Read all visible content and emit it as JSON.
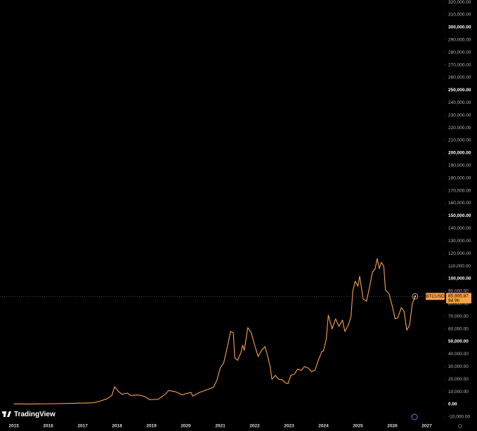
{
  "chart_data": {
    "type": "line",
    "x": [
      2015.0,
      2015.5,
      2016.0,
      2016.5,
      2017.0,
      2017.3,
      2017.5,
      2017.7,
      2017.85,
      2017.93,
      2018.05,
      2018.15,
      2018.3,
      2018.4,
      2018.6,
      2018.8,
      2018.95,
      2019.2,
      2019.4,
      2019.5,
      2019.7,
      2019.9,
      2020.0,
      2020.15,
      2020.2,
      2020.4,
      2020.6,
      2020.8,
      2020.9,
      2021.0,
      2021.1,
      2021.2,
      2021.3,
      2021.38,
      2021.42,
      2021.5,
      2021.6,
      2021.65,
      2021.7,
      2021.8,
      2021.9,
      2022.0,
      2022.1,
      2022.2,
      2022.3,
      2022.38,
      2022.45,
      2022.5,
      2022.6,
      2022.7,
      2022.8,
      2022.9,
      2022.97,
      2023.05,
      2023.15,
      2023.25,
      2023.35,
      2023.45,
      2023.55,
      2023.65,
      2023.75,
      2023.85,
      2023.95,
      2024.0,
      2024.08,
      2024.14,
      2024.25,
      2024.35,
      2024.45,
      2024.55,
      2024.62,
      2024.72,
      2024.8,
      2024.85,
      2024.92,
      2025.0,
      2025.05,
      2025.15,
      2025.25,
      2025.35,
      2025.42,
      2025.5,
      2025.56,
      2025.62,
      2025.68,
      2025.75,
      2025.8,
      2025.9,
      2026.0,
      2026.08,
      2026.16,
      2026.26,
      2026.34,
      2026.42,
      2026.5,
      2026.58,
      2026.66
    ],
    "series": [
      {
        "name": "BTCUSD",
        "color": "#f7a34a",
        "values": [
          300,
          250,
          430,
          650,
          1000,
          1200,
          2500,
          4300,
          7000,
          14000,
          10000,
          8000,
          9000,
          7000,
          7500,
          6300,
          3700,
          4000,
          8000,
          11000,
          10000,
          7500,
          8500,
          9500,
          6500,
          9500,
          11500,
          13500,
          19000,
          29000,
          33000,
          45000,
          58000,
          57000,
          37000,
          35000,
          41000,
          47000,
          43000,
          61000,
          57000,
          47000,
          38000,
          43000,
          46000,
          38000,
          30000,
          20000,
          23000,
          20000,
          19500,
          17000,
          16500,
          23000,
          24000,
          28000,
          27000,
          30000,
          29000,
          26000,
          27000,
          35000,
          42000,
          42500,
          52000,
          71000,
          60000,
          68000,
          62000,
          67000,
          58000,
          63000,
          70000,
          90000,
          98000,
          94000,
          102000,
          84000,
          82000,
          95000,
          105000,
          108000,
          116000,
          108000,
          113000,
          110000,
          91000,
          88000,
          78000,
          68000,
          69000,
          77000,
          74000,
          59000,
          63000,
          80000,
          85905.87
        ]
      }
    ],
    "last_price": {
      "value": 85905.87,
      "label": "85,905.87"
    },
    "countdown": "9d 9h",
    "watermark": "TradingView",
    "xlim": [
      2014.6,
      2027.5
    ],
    "xticks": [
      2015,
      2016,
      2017,
      2018,
      2019,
      2020,
      2021,
      2022,
      2023,
      2024,
      2025,
      2026,
      2027
    ],
    "ylim": [
      -13400,
      321700
    ],
    "yticks": [
      {
        "value": -10000,
        "label": "-10,000.00"
      },
      {
        "value": 0,
        "label": "0.00"
      },
      {
        "value": 10000,
        "label": "10,000.00"
      },
      {
        "value": 20000,
        "label": "20,000.00"
      },
      {
        "value": 30000,
        "label": "30,000.00"
      },
      {
        "value": 40000,
        "label": "40,000.00"
      },
      {
        "value": 50000,
        "label": "50,000.00"
      },
      {
        "value": 60000,
        "label": "60,000.00"
      },
      {
        "value": 70000,
        "label": "70,000.00"
      },
      {
        "value": 80000,
        "label": "80,000.00"
      },
      {
        "value": 90000,
        "label": "90,000.00"
      },
      {
        "value": 100000,
        "label": "100,000.00"
      },
      {
        "value": 110000,
        "label": "110,000.00"
      },
      {
        "value": 120000,
        "label": "120,000.00"
      },
      {
        "value": 130000,
        "label": "130,000.00"
      },
      {
        "value": 140000,
        "label": "140,000.00"
      },
      {
        "value": 150000,
        "label": "150,000.00"
      },
      {
        "value": 160000,
        "label": "160,000.00"
      },
      {
        "value": 170000,
        "label": "170,000.00"
      },
      {
        "value": 180000,
        "label": "180,000.00"
      },
      {
        "value": 190000,
        "label": "190,000.00"
      },
      {
        "value": 200000,
        "label": "200,000.00"
      },
      {
        "value": 210000,
        "label": "210,000.00"
      },
      {
        "value": 220000,
        "label": "220,000.00"
      },
      {
        "value": 230000,
        "label": "230,000.00"
      },
      {
        "value": 240000,
        "label": "240,000.00"
      },
      {
        "value": 250000,
        "label": "250,000.00"
      },
      {
        "value": 260000,
        "label": "260,000.00"
      },
      {
        "value": 270000,
        "label": "270,000.00"
      },
      {
        "value": 280000,
        "label": "280,000.00"
      },
      {
        "value": 290000,
        "label": "290,000.00"
      },
      {
        "value": 300000,
        "label": "300,000.00"
      },
      {
        "value": 310000,
        "label": "310,000.00"
      },
      {
        "value": 320000,
        "label": "320,000.00"
      }
    ],
    "grid": false
  }
}
